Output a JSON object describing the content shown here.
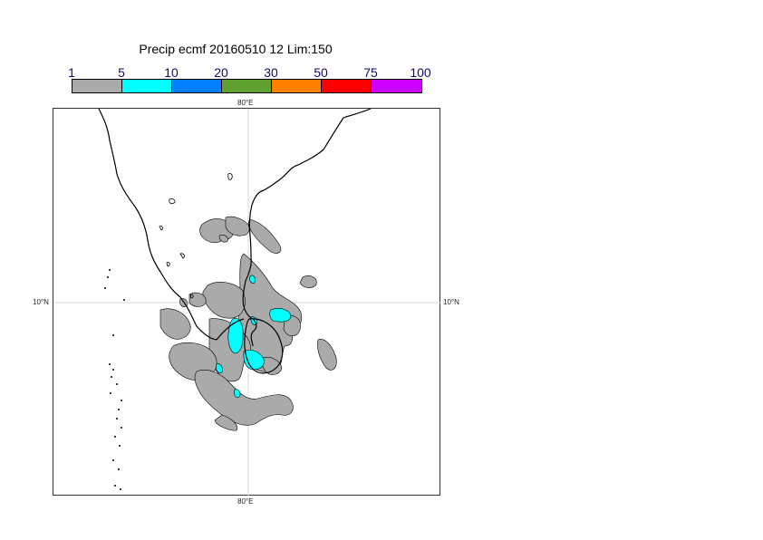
{
  "title": "Precip ecmf 20160510 12 Lim:150",
  "legend": {
    "levels": [
      "1",
      "5",
      "10",
      "20",
      "30",
      "50",
      "75",
      "100"
    ],
    "colors": [
      "#aaaaaa",
      "#00ffff",
      "#0080ff",
      "#60a030",
      "#ff8000",
      "#ff0000",
      "#cc00ff"
    ]
  },
  "map": {
    "lon_label": "80°E",
    "lat_label": "10°N",
    "land_fill": "#ffffff",
    "rain_colors": {
      "light": "#aaaaaa",
      "moderate": "#00ffff"
    }
  }
}
